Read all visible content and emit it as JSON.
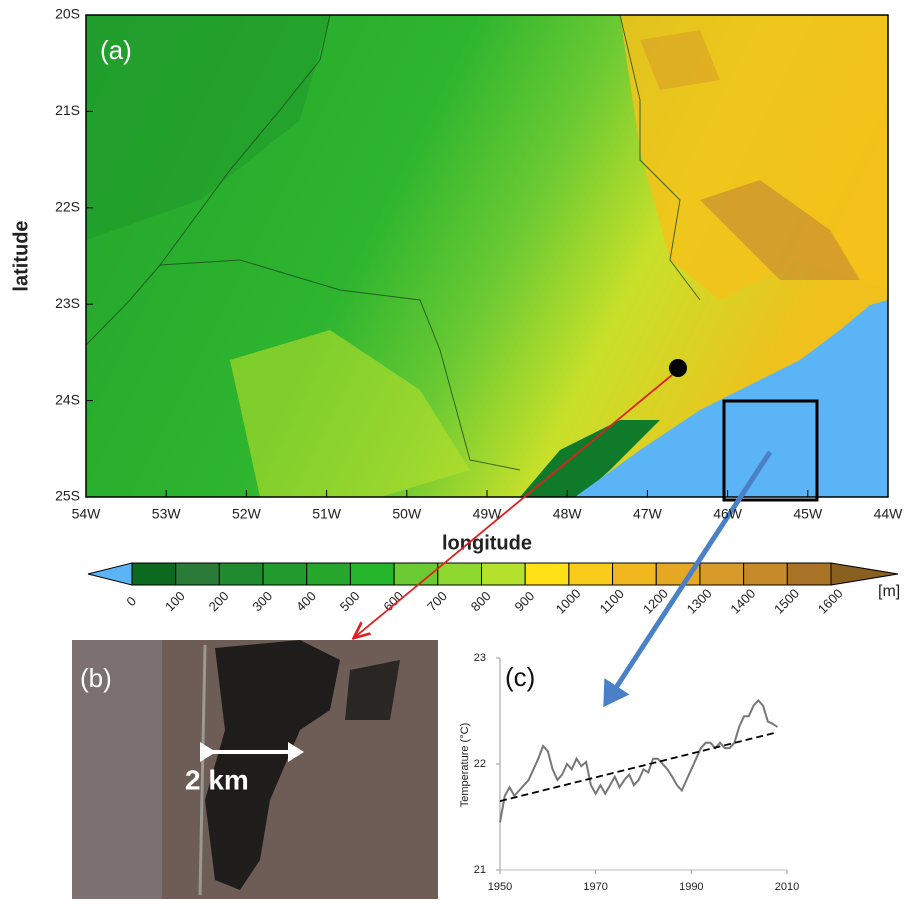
{
  "map": {
    "panel_label": "(a)",
    "x_label": "longitude",
    "y_label": "latitude",
    "xlim": [
      -54,
      -44
    ],
    "xticks": [
      {
        "value": -54,
        "label": "54W"
      },
      {
        "value": -53,
        "label": "53W"
      },
      {
        "value": -52,
        "label": "52W"
      },
      {
        "value": -51,
        "label": "51W"
      },
      {
        "value": -50,
        "label": "50W"
      },
      {
        "value": -49,
        "label": "49W"
      },
      {
        "value": -48,
        "label": "48W"
      },
      {
        "value": -47,
        "label": "47W"
      },
      {
        "value": -46,
        "label": "46W"
      },
      {
        "value": -45,
        "label": "45W"
      },
      {
        "value": -44,
        "label": "44W"
      }
    ],
    "ylim": [
      -25,
      -20
    ],
    "yticks": [
      {
        "value": -25,
        "label": "25S"
      },
      {
        "value": -24,
        "label": "24S"
      },
      {
        "value": -23,
        "label": "23S"
      },
      {
        "value": -22,
        "label": "22S"
      },
      {
        "value": -21,
        "label": "21S"
      },
      {
        "value": -20,
        "label": "20S"
      }
    ]
  },
  "colorbar": {
    "levels": [
      0,
      100,
      200,
      300,
      400,
      500,
      600,
      700,
      800,
      900,
      1000,
      1100,
      1200,
      1300,
      1400,
      1500,
      1600
    ],
    "colors": [
      "#5ab4f5",
      "#0b6a1e",
      "#2a7a38",
      "#1f8a2e",
      "#229a2c",
      "#26a72c",
      "#24b52b",
      "#6cca33",
      "#8fd82f",
      "#b4e22c",
      "#ffe014",
      "#f8cc18",
      "#f0b81e",
      "#e6a824",
      "#d89a28",
      "#c68a28",
      "#a87326",
      "#8a6020"
    ],
    "unit": "[m]"
  },
  "photo": {
    "panel_label": "(b)",
    "scale_label": "2 km"
  },
  "chart_data": {
    "type": "line",
    "panel_label": "(c)",
    "y_label": "Temperature (°C)",
    "x": [
      1950,
      1951,
      1952,
      1953,
      1954,
      1955,
      1956,
      1957,
      1958,
      1959,
      1960,
      1961,
      1962,
      1963,
      1964,
      1965,
      1966,
      1967,
      1968,
      1969,
      1970,
      1971,
      1972,
      1973,
      1974,
      1975,
      1976,
      1977,
      1978,
      1979,
      1980,
      1981,
      1982,
      1983,
      1984,
      1985,
      1986,
      1987,
      1988,
      1989,
      1990,
      1991,
      1992,
      1993,
      1994,
      1995,
      1996,
      1997,
      1998,
      1999,
      2000,
      2001,
      2002,
      2003,
      2004,
      2005,
      2006,
      2007,
      2008
    ],
    "series": [
      {
        "color": "#777777",
        "values": [
          21.45,
          21.7,
          21.78,
          21.7,
          21.75,
          21.8,
          21.85,
          21.95,
          22.05,
          22.17,
          22.12,
          21.95,
          21.85,
          21.9,
          22.0,
          21.95,
          22.05,
          21.98,
          22.02,
          21.8,
          21.72,
          21.8,
          21.72,
          21.8,
          21.88,
          21.78,
          21.85,
          21.9,
          21.8,
          21.85,
          21.95,
          21.92,
          22.05,
          22.05,
          22.0,
          21.95,
          21.88,
          21.8,
          21.75,
          21.85,
          21.95,
          22.05,
          22.15,
          22.2,
          22.2,
          22.15,
          22.2,
          22.15,
          22.15,
          22.2,
          22.35,
          22.45,
          22.45,
          22.55,
          22.6,
          22.55,
          22.4,
          22.38,
          22.35
        ]
      },
      {
        "color": "#000000",
        "dash": true,
        "x": [
          1950,
          2008
        ],
        "values": [
          21.65,
          22.3
        ]
      }
    ],
    "xlim": [
      1950,
      2010
    ],
    "xticks": [
      1950,
      1970,
      1990,
      2010
    ],
    "ylim": [
      21,
      23
    ],
    "yticks": [
      21,
      22,
      23
    ]
  }
}
